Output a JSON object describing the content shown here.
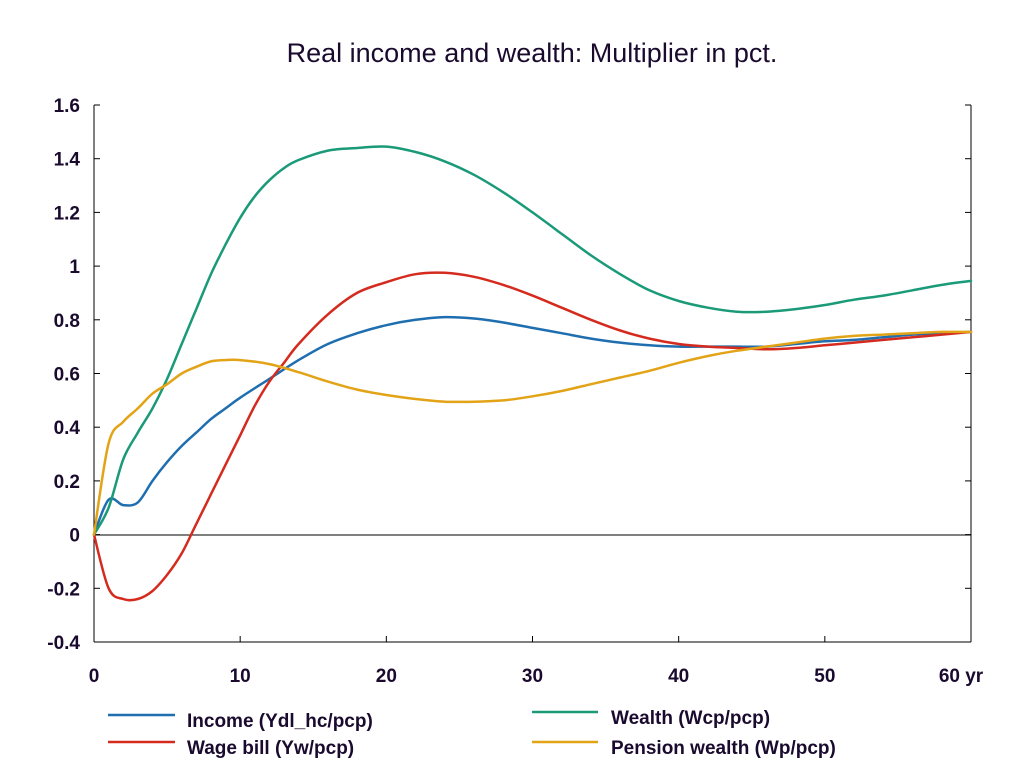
{
  "chart_data": {
    "type": "line",
    "title": "Real income and wealth: Multiplier in pct.",
    "xlabel": "",
    "ylabel": "",
    "xlim": [
      0,
      60
    ],
    "ylim": [
      -0.4,
      1.6
    ],
    "x_ticks": [
      0,
      10,
      20,
      30,
      40,
      50,
      60
    ],
    "x_tick_labels": [
      "0",
      "10",
      "20",
      "30",
      "40",
      "50",
      "60 yr"
    ],
    "y_ticks": [
      -0.4,
      -0.2,
      0,
      0.2,
      0.4,
      0.6,
      0.8,
      1,
      1.2,
      1.4,
      1.6
    ],
    "y_tick_labels": [
      "-0.4",
      "-0.2",
      "0",
      "0.2",
      "0.4",
      "0.6",
      "0.8",
      "1",
      "1.2",
      "1.4",
      "1.6"
    ],
    "grid": false,
    "legend_position": "bottom",
    "series": [
      {
        "name": "Income (Ydl_hc/pcp)",
        "color": "#1f6eb0",
        "points": [
          [
            0,
            0
          ],
          [
            1,
            0.13
          ],
          [
            2,
            0.11
          ],
          [
            3,
            0.12
          ],
          [
            4,
            0.2
          ],
          [
            5,
            0.27
          ],
          [
            6,
            0.33
          ],
          [
            7,
            0.38
          ],
          [
            8,
            0.43
          ],
          [
            9,
            0.47
          ],
          [
            10,
            0.51
          ],
          [
            12,
            0.58
          ],
          [
            14,
            0.65
          ],
          [
            16,
            0.71
          ],
          [
            18,
            0.75
          ],
          [
            20,
            0.78
          ],
          [
            22,
            0.8
          ],
          [
            24,
            0.81
          ],
          [
            26,
            0.805
          ],
          [
            28,
            0.79
          ],
          [
            30,
            0.77
          ],
          [
            32,
            0.75
          ],
          [
            34,
            0.73
          ],
          [
            36,
            0.715
          ],
          [
            38,
            0.705
          ],
          [
            40,
            0.7
          ],
          [
            42,
            0.7
          ],
          [
            44,
            0.7
          ],
          [
            46,
            0.7
          ],
          [
            48,
            0.71
          ],
          [
            50,
            0.72
          ],
          [
            52,
            0.725
          ],
          [
            54,
            0.735
          ],
          [
            56,
            0.745
          ],
          [
            58,
            0.75
          ],
          [
            60,
            0.755
          ]
        ]
      },
      {
        "name": "Wealth (Wcp/pcp)",
        "color": "#1a9a78",
        "points": [
          [
            0,
            0
          ],
          [
            1,
            0.1
          ],
          [
            2,
            0.28
          ],
          [
            3,
            0.38
          ],
          [
            4,
            0.47
          ],
          [
            5,
            0.58
          ],
          [
            6,
            0.71
          ],
          [
            7,
            0.84
          ],
          [
            8,
            0.97
          ],
          [
            9,
            1.08
          ],
          [
            10,
            1.18
          ],
          [
            11,
            1.26
          ],
          [
            12,
            1.32
          ],
          [
            13,
            1.365
          ],
          [
            14,
            1.395
          ],
          [
            16,
            1.43
          ],
          [
            18,
            1.44
          ],
          [
            20,
            1.445
          ],
          [
            22,
            1.425
          ],
          [
            24,
            1.39
          ],
          [
            26,
            1.34
          ],
          [
            28,
            1.275
          ],
          [
            30,
            1.2
          ],
          [
            32,
            1.12
          ],
          [
            34,
            1.04
          ],
          [
            36,
            0.97
          ],
          [
            38,
            0.91
          ],
          [
            40,
            0.87
          ],
          [
            42,
            0.845
          ],
          [
            44,
            0.83
          ],
          [
            46,
            0.83
          ],
          [
            48,
            0.84
          ],
          [
            50,
            0.855
          ],
          [
            52,
            0.875
          ],
          [
            54,
            0.89
          ],
          [
            56,
            0.91
          ],
          [
            58,
            0.93
          ],
          [
            60,
            0.945
          ]
        ]
      },
      {
        "name": "Wage bill (Yw/pcp)",
        "color": "#d42b1e",
        "points": [
          [
            0,
            0
          ],
          [
            1,
            -0.2
          ],
          [
            2,
            -0.24
          ],
          [
            3,
            -0.24
          ],
          [
            4,
            -0.21
          ],
          [
            5,
            -0.15
          ],
          [
            6,
            -0.07
          ],
          [
            7,
            0.04
          ],
          [
            8,
            0.15
          ],
          [
            9,
            0.26
          ],
          [
            10,
            0.37
          ],
          [
            11,
            0.48
          ],
          [
            12,
            0.57
          ],
          [
            13,
            0.64
          ],
          [
            14,
            0.71
          ],
          [
            16,
            0.82
          ],
          [
            18,
            0.9
          ],
          [
            20,
            0.94
          ],
          [
            22,
            0.97
          ],
          [
            24,
            0.975
          ],
          [
            26,
            0.96
          ],
          [
            28,
            0.93
          ],
          [
            30,
            0.89
          ],
          [
            32,
            0.845
          ],
          [
            34,
            0.8
          ],
          [
            36,
            0.76
          ],
          [
            38,
            0.73
          ],
          [
            40,
            0.71
          ],
          [
            42,
            0.7
          ],
          [
            44,
            0.695
          ],
          [
            46,
            0.69
          ],
          [
            48,
            0.695
          ],
          [
            50,
            0.705
          ],
          [
            52,
            0.715
          ],
          [
            54,
            0.725
          ],
          [
            56,
            0.735
          ],
          [
            58,
            0.745
          ],
          [
            60,
            0.755
          ]
        ]
      },
      {
        "name": "Pension wealth (Wp/pcp)",
        "color": "#e3a317",
        "points": [
          [
            0,
            0
          ],
          [
            1,
            0.34
          ],
          [
            2,
            0.42
          ],
          [
            3,
            0.47
          ],
          [
            4,
            0.525
          ],
          [
            5,
            0.56
          ],
          [
            6,
            0.6
          ],
          [
            7,
            0.625
          ],
          [
            8,
            0.645
          ],
          [
            9,
            0.65
          ],
          [
            10,
            0.65
          ],
          [
            12,
            0.635
          ],
          [
            14,
            0.605
          ],
          [
            16,
            0.57
          ],
          [
            18,
            0.54
          ],
          [
            20,
            0.52
          ],
          [
            22,
            0.505
          ],
          [
            24,
            0.495
          ],
          [
            26,
            0.495
          ],
          [
            28,
            0.5
          ],
          [
            30,
            0.515
          ],
          [
            32,
            0.535
          ],
          [
            34,
            0.56
          ],
          [
            36,
            0.585
          ],
          [
            38,
            0.61
          ],
          [
            40,
            0.64
          ],
          [
            42,
            0.665
          ],
          [
            44,
            0.685
          ],
          [
            46,
            0.7
          ],
          [
            48,
            0.715
          ],
          [
            50,
            0.73
          ],
          [
            52,
            0.74
          ],
          [
            54,
            0.745
          ],
          [
            56,
            0.75
          ],
          [
            58,
            0.755
          ],
          [
            60,
            0.755
          ]
        ]
      }
    ]
  }
}
